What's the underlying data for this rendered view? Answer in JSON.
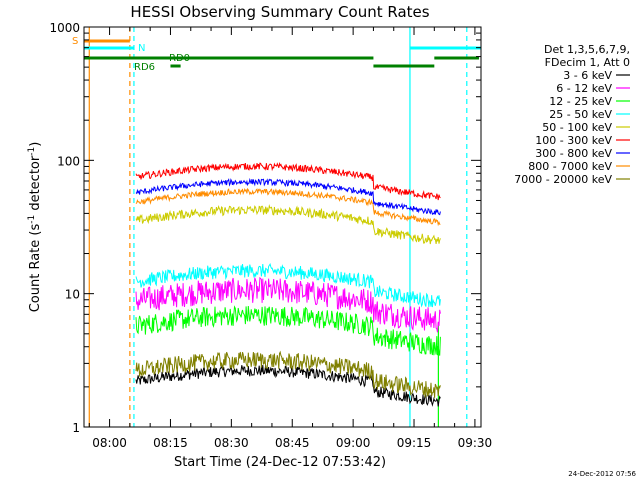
{
  "chart_data": {
    "type": "line",
    "title": "HESSI Observing Summary Count Rates",
    "xlabel": "Start Time (24-Dec-12 07:53:42)",
    "ylabel_main": "Count Rate (s",
    "ylabel_sup1": "-1",
    "ylabel_mid": " detector",
    "ylabel_sup2": "-1",
    "ylabel_end": ")",
    "y_scale": "log",
    "ylim": [
      1,
      1000
    ],
    "xlim": [
      "07:53:42",
      "09:31:30"
    ],
    "x_ticks": [
      "08:00",
      "08:15",
      "08:30",
      "08:45",
      "09:00",
      "09:15",
      "09:30"
    ],
    "y_ticks": [
      "1",
      "10",
      "100",
      "1000"
    ],
    "legend_header": [
      "Det 1,3,5,6,7,9,",
      "FDecim 1, Att 0"
    ],
    "legend_placement": "right",
    "timestamp": "24-Dec-2012 07:56",
    "series": [
      {
        "name": "3 - 6 keV",
        "color": "#000000",
        "level": 2.5
      },
      {
        "name": "6 - 12 keV",
        "color": "#ff00ff",
        "level": 10
      },
      {
        "name": "12 - 25 keV",
        "color": "#00ff00",
        "level": 6.5
      },
      {
        "name": "25 - 50 keV",
        "color": "#00ffff",
        "level": 14
      },
      {
        "name": "50 - 100 keV",
        "color": "#cccc00",
        "level": 40
      },
      {
        "name": "100 - 300 keV",
        "color": "#ff0000",
        "level": 85
      },
      {
        "name": "300 - 800 keV",
        "color": "#0000ff",
        "level": 65
      },
      {
        "name": "800 - 7000 keV",
        "color": "#ff8c00",
        "level": 55
      },
      {
        "name": "7000 - 20000 keV",
        "color": "#808000",
        "level": 3
      }
    ],
    "flag_labels": {
      "s": "S",
      "n": "N",
      "rd0": "RD0",
      "rd6": "RD6"
    },
    "flag_colors": {
      "s": "#ff8c00",
      "n": "#00ffff",
      "rd": "#008000"
    }
  }
}
